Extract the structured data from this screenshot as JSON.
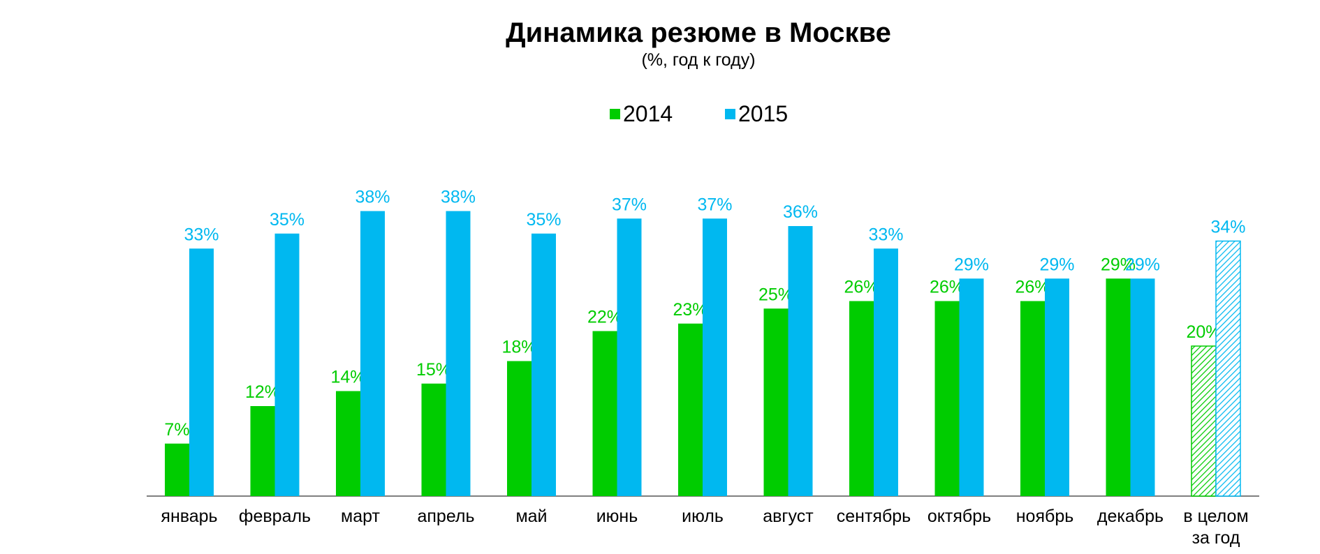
{
  "chart_data": {
    "type": "bar",
    "title": "Динамика резюме в Москве",
    "subtitle": "(%, год к году)",
    "legend_position": "top-center",
    "grid": false,
    "ylim": [
      0,
      40
    ],
    "categories": [
      [
        "январь"
      ],
      [
        "февраль"
      ],
      [
        "март"
      ],
      [
        "апрель"
      ],
      [
        "май"
      ],
      [
        "июнь"
      ],
      [
        "июль"
      ],
      [
        "август"
      ],
      [
        "сентябрь"
      ],
      [
        "октябрь"
      ],
      [
        "ноябрь"
      ],
      [
        "декабрь"
      ],
      [
        "в целом",
        "за год"
      ]
    ],
    "series": [
      {
        "name": "2014",
        "color": "#00CC00",
        "values": [
          7,
          12,
          14,
          15,
          18,
          22,
          23,
          25,
          26,
          26,
          26,
          29,
          20
        ],
        "labels": [
          "7%",
          "12%",
          "14%",
          "15%",
          "18%",
          "22%",
          "23%",
          "25%",
          "26%",
          "26%",
          "26%",
          "29%",
          "20%"
        ]
      },
      {
        "name": "2015",
        "color": "#00B8F0",
        "values": [
          33,
          35,
          38,
          38,
          35,
          37,
          37,
          36,
          33,
          29,
          29,
          29,
          34
        ],
        "labels": [
          "33%",
          "35%",
          "38%",
          "38%",
          "35%",
          "37%",
          "37%",
          "36%",
          "33%",
          "29%",
          "29%",
          "29%",
          "34%"
        ]
      }
    ],
    "hatched_categories": [
      12
    ],
    "axis_color": "#7F7F7F"
  }
}
